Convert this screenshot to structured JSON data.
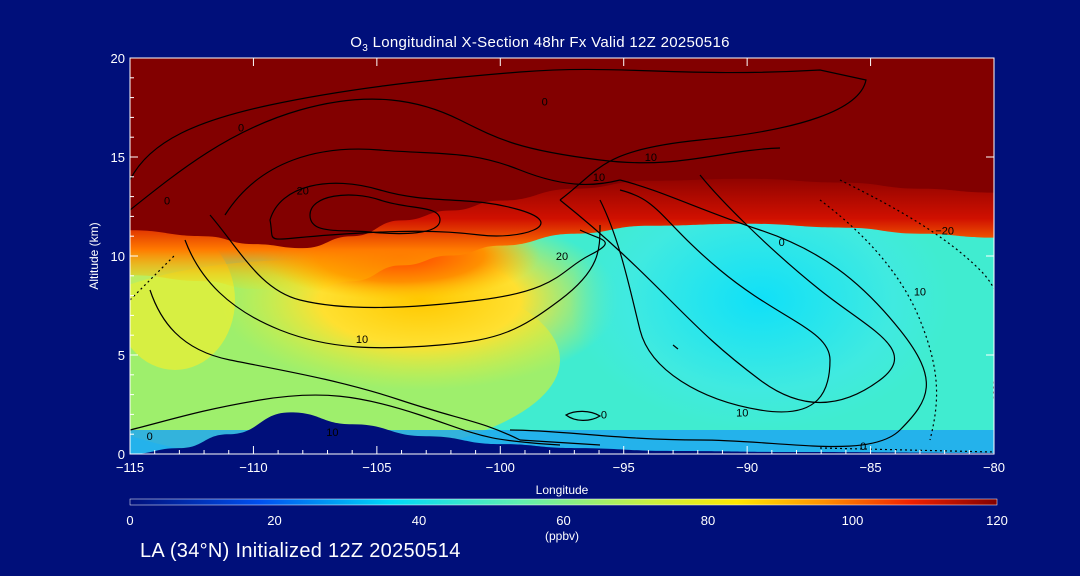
{
  "chart_data": {
    "type": "heatmap",
    "title": "O3 Longitudinal X-Section 48hr  Fx Valid 12Z 20250516",
    "title_parts": {
      "pre": "O",
      "sub": "3",
      "post": " Longitudinal X-Section 48hr  Fx Valid 12Z 20250516"
    },
    "xlabel": "Longitude",
    "ylabel": "Altitude (km)",
    "xlim": [
      -115,
      -80
    ],
    "ylim": [
      0,
      20
    ],
    "xticks": [
      -115,
      -110,
      -105,
      -100,
      -95,
      -90,
      -85,
      -80
    ],
    "xtick_labels": [
      "−115",
      "−110",
      "−105",
      "−100",
      "−95",
      "−90",
      "−85",
      "−80"
    ],
    "yticks": [
      0,
      5,
      10,
      15,
      20
    ],
    "colorbar": {
      "ticks": [
        0,
        20,
        40,
        60,
        80,
        100,
        120
      ],
      "unit_label": "(ppbv)",
      "range": [
        0,
        120
      ]
    },
    "tropopause_height_km": [
      {
        "lon": -115,
        "km": 11.3
      },
      {
        "lon": -112,
        "km": 11.0
      },
      {
        "lon": -110,
        "km": 10.6
      },
      {
        "lon": -108,
        "km": 10.4
      },
      {
        "lon": -106,
        "km": 11.0
      },
      {
        "lon": -104,
        "km": 11.8
      },
      {
        "lon": -102,
        "km": 12.3
      },
      {
        "lon": -100,
        "km": 12.8
      },
      {
        "lon": -97,
        "km": 13.4
      },
      {
        "lon": -94,
        "km": 13.8
      },
      {
        "lon": -90,
        "km": 13.9
      },
      {
        "lon": -86,
        "km": 13.7
      },
      {
        "lon": -83,
        "km": 13.4
      },
      {
        "lon": -80,
        "km": 13.2
      }
    ],
    "terrain_height_km": [
      {
        "lon": -115,
        "km": 0.0
      },
      {
        "lon": -113,
        "km": 0.3
      },
      {
        "lon": -111,
        "km": 1.0
      },
      {
        "lon": -108.5,
        "km": 2.1
      },
      {
        "lon": -106,
        "km": 1.5
      },
      {
        "lon": -103,
        "km": 0.9
      },
      {
        "lon": -100,
        "km": 0.5
      },
      {
        "lon": -97,
        "km": 0.3
      },
      {
        "lon": -93,
        "km": 0.15
      },
      {
        "lon": -88,
        "km": 0.1
      },
      {
        "lon": -80,
        "km": 0.05
      }
    ],
    "contour_labels": [
      {
        "text": "0",
        "lon": -95.8,
        "km": 2.0
      },
      {
        "text": "0",
        "lon": -85.3,
        "km": 0.4
      },
      {
        "text": "0",
        "lon": -114.2,
        "km": 0.9
      },
      {
        "text": "0",
        "lon": -88.6,
        "km": 10.7
      },
      {
        "text": "0",
        "lon": -110.5,
        "km": 16.5
      },
      {
        "text": "0",
        "lon": -113.5,
        "km": 12.8
      },
      {
        "text": "0",
        "lon": -98.2,
        "km": 17.8
      },
      {
        "text": "10",
        "lon": -105.6,
        "km": 5.8
      },
      {
        "text": "10",
        "lon": -90.2,
        "km": 2.1
      },
      {
        "text": "10",
        "lon": -93.9,
        "km": 15.0
      },
      {
        "text": "10",
        "lon": -96.0,
        "km": 14.0
      },
      {
        "text": "10",
        "lon": -83.0,
        "km": 8.2
      },
      {
        "text": "10",
        "lon": -106.8,
        "km": 1.1
      },
      {
        "text": "20",
        "lon": -97.5,
        "km": 10.0
      },
      {
        "text": "20",
        "lon": -108.0,
        "km": 13.3
      },
      {
        "text": "−20",
        "lon": -82.0,
        "km": 11.3
      }
    ]
  },
  "footer": {
    "text": "LA (34°N) Initialized 12Z 20250514"
  },
  "colors": {
    "background": "#000f7a",
    "stratosphere": "#820000",
    "surface": "#000f7a",
    "text": "#ffffff",
    "contour": "#000000"
  }
}
